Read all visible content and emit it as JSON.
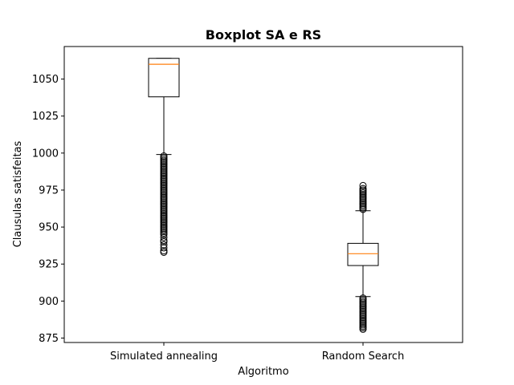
{
  "chart_data": {
    "type": "boxplot",
    "title": "Boxplot SA e RS",
    "xlabel": "Algoritmo",
    "ylabel": "Clausulas satisfeitas",
    "ylim": [
      872,
      1072
    ],
    "yticks": [
      875,
      900,
      925,
      950,
      975,
      1000,
      1025,
      1050
    ],
    "grid": false,
    "categories": [
      "Simulated annealing",
      "Random Search"
    ],
    "boxes": [
      {
        "name": "Simulated annealing",
        "whisker_low": 999,
        "q1": 1038,
        "median": 1060,
        "q3": 1064,
        "whisker_high": 1064,
        "fliers": [
          998,
          997,
          996,
          995,
          994,
          993,
          992,
          991,
          990,
          989,
          988,
          987,
          986,
          985,
          984,
          983,
          982,
          981,
          980,
          979,
          978,
          977,
          976,
          975,
          974,
          973,
          972,
          971,
          970,
          969,
          968,
          967,
          966,
          965,
          964,
          963,
          962,
          961,
          960,
          959,
          958,
          957,
          956,
          955,
          954,
          953,
          952,
          951,
          950,
          949,
          948,
          947,
          946,
          945,
          943,
          941,
          940,
          938,
          936,
          934,
          933
        ]
      },
      {
        "name": "Random Search",
        "whisker_low": 903,
        "q1": 924,
        "median": 932,
        "q3": 939,
        "whisker_high": 961,
        "fliers": [
          962,
          963,
          964,
          965,
          966,
          967,
          968,
          969,
          970,
          971,
          972,
          973,
          974,
          975,
          976,
          978,
          902,
          901,
          900,
          899,
          898,
          897,
          896,
          895,
          894,
          893,
          892,
          891,
          890,
          889,
          888,
          887,
          886,
          885,
          884,
          883,
          882,
          881
        ]
      }
    ],
    "colors": {
      "box": "#000000",
      "median": "#ff7f0e",
      "flier": "#000000"
    }
  }
}
